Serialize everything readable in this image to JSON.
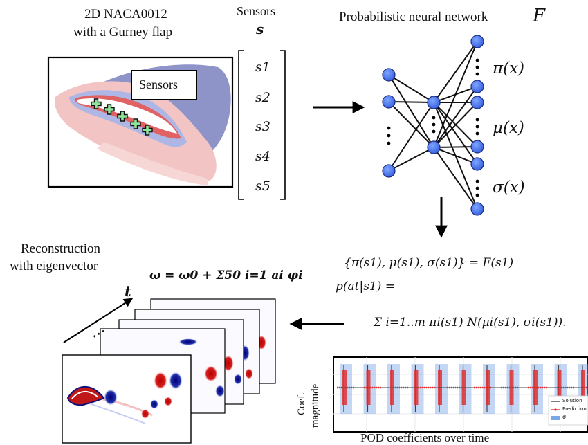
{
  "airfoil": {
    "title_line1": "2D NACA0012",
    "title_line2": "with a Gurney flap",
    "sensors_box": "Sensors"
  },
  "sensor_vector": {
    "title": "Sensors",
    "symbol": "s",
    "entries": [
      "s1",
      "s2",
      "s3",
      "s4",
      "s5"
    ]
  },
  "network": {
    "title": "Probabilistic neural network",
    "symbol": "F",
    "outputs": [
      "π(x)",
      "μ(x)",
      "σ(x)"
    ]
  },
  "equations": {
    "line1": "{π(s1), μ(s1), σ(s1)} = F(s1)",
    "line2": "p(at|s1) =",
    "line3": "Σ i=1..m πi(s1) N(μi(s1), σi(s1))."
  },
  "reconstruction": {
    "title_line1": "Reconstruction",
    "title_line2": "with eigenvector",
    "formula": "ω = ω0 + Σ50 i=1 ai φi",
    "time_label": "t",
    "ellipsis": "⋯"
  },
  "pod_chart": {
    "ylabel_line1": "Coef.",
    "ylabel_line2": "magnitude",
    "caption": "POD coefficients over time",
    "legend": [
      "Solution",
      "Prediction",
      "σ"
    ],
    "colors": {
      "solution": "#444444",
      "prediction": "#e03030",
      "sigma": "#7aa7e8"
    }
  }
}
